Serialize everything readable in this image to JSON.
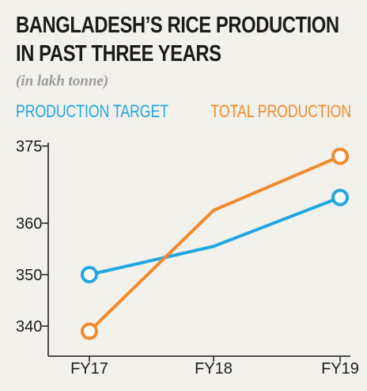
{
  "chart_data": {
    "type": "line",
    "title_lines": [
      "BANGLADESH’S RICE PRODUCTION",
      "IN PAST THREE YEARS"
    ],
    "subtitle": "(in lakh tonne)",
    "categories": [
      "FY17",
      "FY18",
      "FY19"
    ],
    "series": [
      {
        "name": "PRODUCTION TARGET",
        "values": [
          350,
          355.5,
          365
        ],
        "color": "#1ea7e1"
      },
      {
        "name": "TOTAL PRODUCTION",
        "values": [
          339,
          362.5,
          373
        ],
        "color": "#f08a2c"
      }
    ],
    "y_ticks": [
      "375",
      "360",
      "350",
      "340"
    ],
    "ylim": [
      336,
      376
    ],
    "legend_placement": "top",
    "grid": false
  },
  "colors": {
    "background": "#f3f1ec",
    "axis": "#1b1b1b",
    "subtitle": "#9a9a9a"
  }
}
